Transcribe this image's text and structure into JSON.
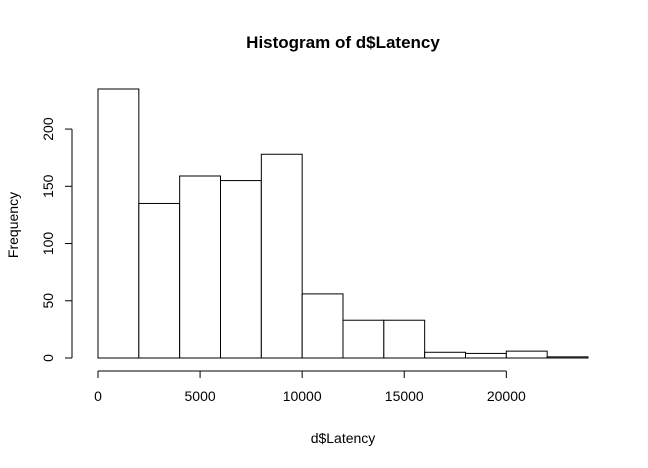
{
  "chart_data": {
    "type": "bar",
    "title": "Histogram of d$Latency",
    "xlabel": "d$Latency",
    "ylabel": "Frequency",
    "bins": [
      {
        "x0": 0,
        "x1": 2000,
        "count": 235
      },
      {
        "x0": 2000,
        "x1": 4000,
        "count": 135
      },
      {
        "x0": 4000,
        "x1": 6000,
        "count": 159
      },
      {
        "x0": 6000,
        "x1": 8000,
        "count": 155
      },
      {
        "x0": 8000,
        "x1": 10000,
        "count": 178
      },
      {
        "x0": 10000,
        "x1": 12000,
        "count": 56
      },
      {
        "x0": 12000,
        "x1": 14000,
        "count": 33
      },
      {
        "x0": 14000,
        "x1": 16000,
        "count": 33
      },
      {
        "x0": 16000,
        "x1": 18000,
        "count": 5
      },
      {
        "x0": 18000,
        "x1": 20000,
        "count": 4
      },
      {
        "x0": 20000,
        "x1": 22000,
        "count": 6
      },
      {
        "x0": 22000,
        "x1": 24000,
        "count": 1
      }
    ],
    "xlim": [
      0,
      24000
    ],
    "ylim": [
      0,
      235
    ],
    "xticks": [
      0,
      5000,
      10000,
      15000,
      20000
    ],
    "yticks": [
      0,
      50,
      100,
      150,
      200
    ],
    "grid": false,
    "colors": {
      "bar_fill": "#ffffff",
      "bar_stroke": "#000000"
    }
  }
}
